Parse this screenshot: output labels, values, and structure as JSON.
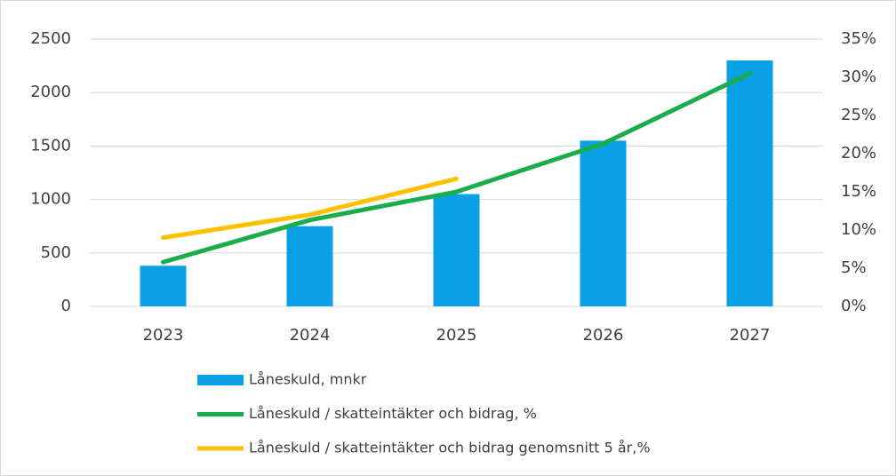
{
  "chart_data": {
    "type": "bar",
    "categories": [
      "2023",
      "2024",
      "2025",
      "2026",
      "2027"
    ],
    "series": [
      {
        "name": "Låneskuld, mnkr",
        "type": "bar",
        "color": "#0aa0e6",
        "values": [
          380,
          750,
          1050,
          1550,
          2300
        ]
      },
      {
        "name": "Låneskuld / skatteintäkter och bidrag, %",
        "type": "line",
        "axis": "y2",
        "color": "#1aad4b",
        "values": [
          5.8,
          11.3,
          15.0,
          21.3,
          30.5
        ]
      },
      {
        "name": "Låneskuld / skatteintäkter och bidrag genomsnitt 5 år,%",
        "type": "line",
        "axis": "y2",
        "color": "#ffc000",
        "values": [
          9.0,
          12.0,
          16.7,
          null,
          null
        ]
      }
    ],
    "ylim": [
      0,
      2500
    ],
    "yticks": [
      0,
      500,
      1000,
      1500,
      2000,
      2500
    ],
    "y2lim": [
      0,
      35
    ],
    "y2ticks": [
      {
        "value": 0,
        "label": "0%"
      },
      {
        "value": 5,
        "label": "5%"
      },
      {
        "value": 10,
        "label": "10%"
      },
      {
        "value": 15,
        "label": "15%"
      },
      {
        "value": 20,
        "label": "20%"
      },
      {
        "value": 25,
        "label": "25%"
      },
      {
        "value": 30,
        "label": "30%"
      },
      {
        "value": 35,
        "label": "35%"
      }
    ],
    "grid": true
  }
}
